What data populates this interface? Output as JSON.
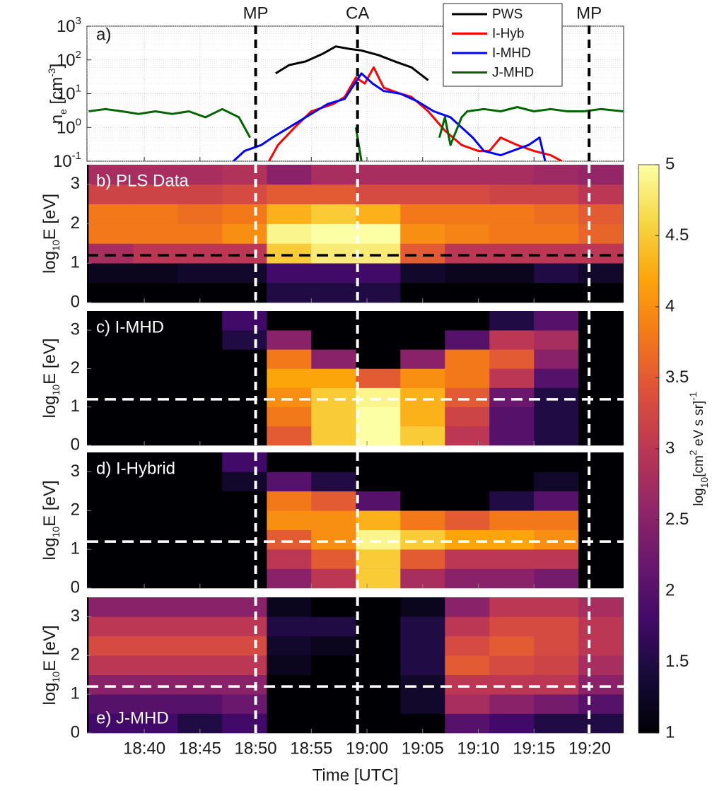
{
  "chart_data": [
    {
      "type": "line",
      "panel_label": "a)",
      "ylabel": [
        "n",
        "e",
        " [cm",
        "-3",
        "]"
      ],
      "ylog": true,
      "grid": true,
      "legend": "upper right",
      "xlim": [
        34.85,
        83.05
      ],
      "xticks": [
        40,
        45,
        50,
        55,
        60,
        65,
        70,
        75,
        80
      ],
      "ylim": [
        0.1,
        1000
      ],
      "yticks": [
        {
          "value": 0.1,
          "label": "10",
          "exponent": "-1"
        },
        {
          "value": 1,
          "label": "10",
          "exponent": "0"
        },
        {
          "value": 10,
          "label": "10",
          "exponent": "1"
        },
        {
          "value": 100,
          "label": "10",
          "exponent": "2"
        },
        {
          "value": 1000,
          "label": "10",
          "exponent": "3"
        }
      ],
      "events": [
        {
          "label": "MP",
          "x": 50.0
        },
        {
          "label": "CA",
          "x": 59.15
        },
        {
          "label": "MP",
          "x": 79.95
        }
      ],
      "series": [
        {
          "name": "PWS",
          "color": "#000000",
          "x": [
            51.8,
            53,
            54.5,
            56,
            57.2,
            58.5,
            59.5,
            61,
            62.5,
            64,
            65.5
          ],
          "values": [
            40,
            70,
            90,
            150,
            250,
            210,
            190,
            140,
            90,
            60,
            25
          ]
        },
        {
          "name": "I-Hyb",
          "color": "#ff0000",
          "x": [
            51.2,
            52,
            53.5,
            55,
            57,
            58,
            59,
            59.8,
            60.6,
            61.5,
            63,
            64,
            65.5,
            67,
            68.5,
            70,
            71,
            72,
            73.5,
            75,
            76.5,
            77.5
          ],
          "values": [
            0.1,
            0.3,
            1,
            3,
            5,
            8,
            30,
            20,
            60,
            15,
            10,
            8,
            3,
            0.8,
            0.3,
            0.2,
            0.2,
            0.5,
            0.3,
            0.2,
            0.15,
            0.1
          ]
        },
        {
          "name": "I-MHD",
          "color": "#0000ff",
          "x": [
            48,
            49,
            50.5,
            51.5,
            53,
            54.5,
            56.5,
            58,
            59.5,
            60.5,
            61.5,
            63,
            64.5,
            66,
            67.5,
            68.5,
            69.5,
            70.5,
            72,
            74.5,
            75.5,
            76
          ],
          "values": [
            0.1,
            0.2,
            0.3,
            0.5,
            1,
            2,
            5,
            7,
            40,
            20,
            12,
            10,
            6,
            3,
            2,
            1,
            0.5,
            0.2,
            0.15,
            0.3,
            0.5,
            0.1
          ]
        },
        {
          "name": "J-MHD",
          "color": "#006400",
          "x": [
            35,
            36.5,
            38,
            39.5,
            41,
            42.5,
            44,
            45.5,
            47,
            48.5,
            49.5,
            50.5,
            59,
            59.5,
            64,
            66.5,
            67,
            67.5,
            68.5,
            69,
            70.5,
            72,
            73.5,
            75,
            76.5,
            78,
            79.5,
            81,
            83
          ],
          "values": [
            3,
            3.5,
            3,
            2.5,
            3,
            2.5,
            3,
            2,
            3.5,
            2,
            0.5,
            null,
            1,
            0.1,
            null,
            0.5,
            2,
            0.3,
            2,
            3,
            3.5,
            3,
            4,
            3,
            3.5,
            3,
            3,
            3.5,
            3
          ]
        }
      ]
    },
    {
      "type": "heatmap",
      "panel_label": "b) PLS Data",
      "ylabel": [
        "log",
        "10",
        "E [eV]"
      ],
      "xlim": [
        34.85,
        83.05
      ],
      "xticks": [
        40,
        45,
        50,
        55,
        60,
        65,
        70,
        75,
        80
      ],
      "ylim": [
        0,
        3.5
      ],
      "yticks": [
        0,
        1,
        2,
        3
      ],
      "hline": 1.2,
      "hline_color": "#000000",
      "vline_color": "#ffffff",
      "x_bins": [
        35,
        39,
        43,
        47,
        51,
        55,
        59,
        63,
        67,
        71,
        75,
        79,
        83
      ],
      "y_bins": [
        0,
        0.5,
        1,
        1.5,
        2,
        2.5,
        3,
        3.5
      ],
      "z": [
        [
          1,
          1,
          1,
          1,
          1.5,
          1.5,
          1.5,
          1,
          1,
          1,
          1,
          1
        ],
        [
          1.2,
          1.2,
          1.3,
          1.3,
          1.8,
          1.8,
          1.8,
          1.3,
          1.2,
          1.2,
          1.5,
          1.3
        ],
        [
          2.8,
          3,
          3,
          3,
          4.5,
          4.8,
          4.8,
          3.5,
          3,
          3,
          3,
          3
        ],
        [
          3.8,
          3.8,
          3.8,
          4,
          4.9,
          5,
          5,
          4,
          3.9,
          3.8,
          3.8,
          3.6
        ],
        [
          3.8,
          3.8,
          3.7,
          3.8,
          4.3,
          4.5,
          4.3,
          3.8,
          3.8,
          3.8,
          3.7,
          3.5
        ],
        [
          3.2,
          3.2,
          3.2,
          3.3,
          3.5,
          3.5,
          3.3,
          3.3,
          3.3,
          3.2,
          3.2,
          3
        ],
        [
          2.8,
          2.8,
          2.8,
          2.9,
          2.5,
          2.8,
          2.8,
          2.8,
          2.8,
          2.8,
          2.7,
          2.6
        ]
      ]
    },
    {
      "type": "heatmap",
      "panel_label": "c) I-MHD",
      "ylabel": [
        "log",
        "10",
        "E [eV]"
      ],
      "xlim": [
        34.85,
        83.05
      ],
      "xticks": [
        40,
        45,
        50,
        55,
        60,
        65,
        70,
        75,
        80
      ],
      "ylim": [
        0,
        3.5
      ],
      "yticks": [
        0,
        1,
        2,
        3
      ],
      "hline": 1.2,
      "hline_color": "#ffffff",
      "vline_color": "#ffffff",
      "x_bins": [
        35,
        39,
        43,
        47,
        51,
        55,
        59,
        63,
        67,
        71,
        75,
        79,
        83
      ],
      "y_bins": [
        0,
        0.5,
        1,
        1.5,
        2,
        2.5,
        3,
        3.5
      ],
      "z": [
        [
          1,
          1,
          1,
          1,
          3.5,
          4.5,
          5,
          4.5,
          3,
          2,
          1.5,
          1
        ],
        [
          1,
          1,
          1,
          1,
          3.8,
          4.5,
          5,
          4.3,
          3.2,
          2,
          1.5,
          1
        ],
        [
          1,
          1,
          1,
          1,
          4,
          4.5,
          4.9,
          4.3,
          3.5,
          2.2,
          1.5,
          1
        ],
        [
          1,
          1,
          1,
          1,
          4.2,
          4.2,
          3.5,
          4,
          3.8,
          3,
          2,
          1
        ],
        [
          1,
          1,
          1,
          1,
          3.8,
          2.5,
          1,
          2.5,
          3.8,
          3.5,
          2.5,
          1
        ],
        [
          1,
          1,
          1,
          1.5,
          2.5,
          1,
          1,
          1,
          2,
          3,
          2.8,
          1
        ],
        [
          1,
          1,
          1,
          1.8,
          1,
          1,
          1,
          1,
          1,
          1.5,
          2,
          1
        ]
      ]
    },
    {
      "type": "heatmap",
      "panel_label": "d) I-Hybrid",
      "ylabel": [
        "log",
        "10",
        "E [eV]"
      ],
      "xlim": [
        34.85,
        83.05
      ],
      "xticks": [
        40,
        45,
        50,
        55,
        60,
        65,
        70,
        75,
        80
      ],
      "ylim": [
        0,
        3.5
      ],
      "yticks": [
        0,
        1,
        2,
        3
      ],
      "hline": 1.2,
      "hline_color": "#ffffff",
      "vline_color": "#ffffff",
      "x_bins": [
        35,
        39,
        43,
        47,
        51,
        55,
        59,
        63,
        67,
        71,
        75,
        79,
        83
      ],
      "y_bins": [
        0,
        0.5,
        1,
        1.5,
        2,
        2.5,
        3,
        3.5
      ],
      "z": [
        [
          1,
          1,
          1,
          1,
          2.5,
          3,
          4.5,
          2.8,
          2.5,
          2.5,
          2.3,
          1
        ],
        [
          1,
          1,
          1,
          1,
          3,
          3.5,
          4.5,
          3.5,
          3,
          3,
          3,
          1
        ],
        [
          1,
          1,
          1,
          1,
          3.5,
          4,
          4.9,
          4.5,
          4.2,
          4.2,
          4,
          1
        ],
        [
          1,
          1,
          1,
          1,
          4,
          4,
          4.3,
          3.8,
          3.5,
          3.8,
          3.8,
          1
        ],
        [
          1,
          1,
          1,
          1,
          3.8,
          3.5,
          2,
          1,
          1,
          1.5,
          2,
          1
        ],
        [
          1,
          1,
          1,
          1.3,
          2,
          1.5,
          1,
          1,
          1,
          1,
          1.3,
          1
        ],
        [
          1,
          1,
          1,
          1.8,
          1,
          1,
          1,
          1,
          1,
          1,
          1,
          1
        ]
      ]
    },
    {
      "type": "heatmap",
      "panel_label": "e) J-MHD",
      "ylabel": [
        "log",
        "10",
        "E [eV]"
      ],
      "xlabel": "Time [UTC]",
      "xlim": [
        34.85,
        83.05
      ],
      "xticks": [
        {
          "value": 40,
          "label": "18:40"
        },
        {
          "value": 45,
          "label": "18:45"
        },
        {
          "value": 50,
          "label": "18:50"
        },
        {
          "value": 55,
          "label": "18:55"
        },
        {
          "value": 60,
          "label": "19:00"
        },
        {
          "value": 65,
          "label": "19:05"
        },
        {
          "value": 70,
          "label": "19:10"
        },
        {
          "value": 75,
          "label": "19:15"
        },
        {
          "value": 80,
          "label": "19:20"
        }
      ],
      "ylim": [
        0,
        3.5
      ],
      "yticks": [
        0,
        1,
        2,
        3
      ],
      "hline": 1.2,
      "hline_color": "#ffffff",
      "vline_color": "#ffffff",
      "x_bins": [
        35,
        39,
        43,
        47,
        51,
        55,
        59,
        63,
        67,
        71,
        75,
        79,
        83
      ],
      "y_bins": [
        0,
        0.5,
        1,
        1.5,
        2,
        2.5,
        3,
        3.5
      ],
      "z": [
        [
          1.8,
          1.8,
          1.5,
          1.8,
          1,
          1,
          1,
          1,
          2,
          1.8,
          1.5,
          1.5
        ],
        [
          2,
          2,
          2,
          2.2,
          1,
          1,
          1,
          1.3,
          2.8,
          2.5,
          2.3,
          2
        ],
        [
          2.5,
          2.5,
          2.5,
          2.5,
          1,
          1,
          1,
          1.3,
          3,
          3,
          3,
          2.5
        ],
        [
          3,
          3,
          3,
          3,
          1.2,
          1,
          1,
          1.5,
          3.5,
          3.3,
          3.2,
          2.8
        ],
        [
          3.3,
          3.3,
          3.3,
          3.3,
          1.3,
          1.2,
          1,
          1.5,
          3.3,
          3.5,
          3.3,
          3
        ],
        [
          3,
          3,
          3,
          3,
          1.5,
          1.5,
          1,
          1.5,
          3,
          3.3,
          3.3,
          3
        ],
        [
          2.5,
          2.5,
          2.5,
          2.5,
          1.2,
          1,
          1,
          1.2,
          2.5,
          3,
          3,
          2.8
        ]
      ]
    },
    {
      "type": "colorbar",
      "colormap": "inferno",
      "zlim": [
        1,
        5
      ],
      "zticks": [
        1,
        1.5,
        2,
        2.5,
        3,
        3.5,
        4,
        4.5,
        5
      ],
      "label": [
        "log",
        "10",
        "[cm",
        "2",
        " eV s sr]",
        "-1"
      ]
    }
  ]
}
